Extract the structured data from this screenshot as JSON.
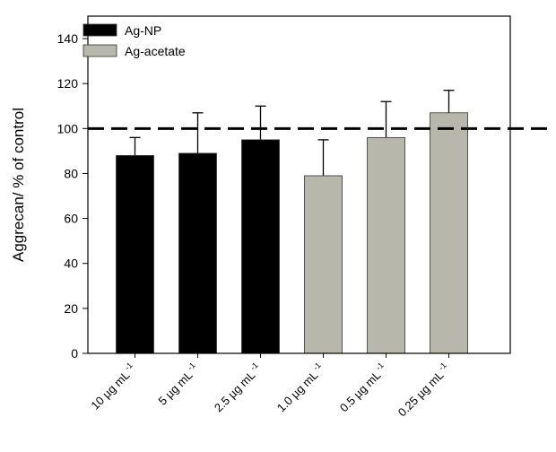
{
  "chart_data": {
    "type": "bar",
    "title": "",
    "xlabel": "",
    "ylabel": "Aggrecan/ % of control",
    "ylim": [
      0,
      150
    ],
    "yticks": [
      0,
      20,
      40,
      60,
      80,
      100,
      120,
      140
    ],
    "grid": false,
    "legend_position": "top-left",
    "reference_line": {
      "value": 100,
      "style": "dashed"
    },
    "categories": [
      {
        "main": "10 µg mL",
        "sup": "-1"
      },
      {
        "main": "5 µg mL",
        "sup": "-1"
      },
      {
        "main": "2.5 µg mL",
        "sup": "-1"
      },
      {
        "main": "1.0 µg mL",
        "sup": "-1"
      },
      {
        "main": "0.5 µg mL",
        "sup": "-1"
      },
      {
        "main": "0.25 µg mL",
        "sup": "-1"
      }
    ],
    "series": [
      {
        "name": "Ag-NP",
        "color": "#000000",
        "indices": [
          0,
          1,
          2
        ]
      },
      {
        "name": "Ag-acetate",
        "color": "#b7b7ab",
        "indices": [
          3,
          4,
          5
        ]
      }
    ],
    "values": [
      88,
      89,
      95,
      79,
      96,
      107
    ],
    "error_upper": [
      96,
      107,
      110,
      95,
      112,
      117
    ]
  }
}
